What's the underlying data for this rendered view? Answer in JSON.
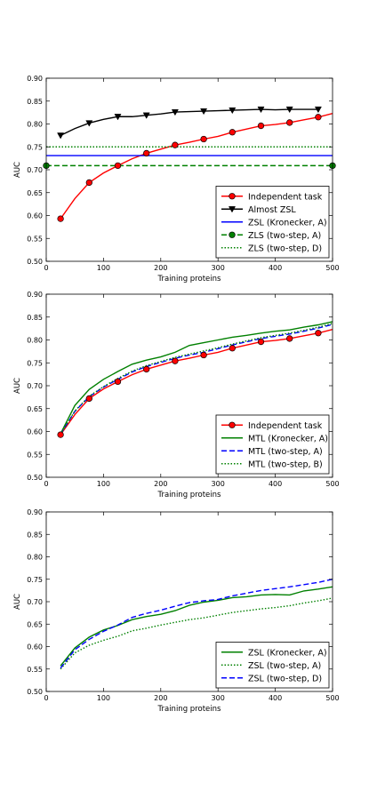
{
  "chart_data": [
    {
      "type": "line",
      "xlabel": "Training proteins",
      "ylabel": "AUC",
      "xlim": [
        0,
        500
      ],
      "ylim": [
        0.5,
        0.9
      ],
      "xticks": [
        0,
        100,
        200,
        300,
        400,
        500
      ],
      "yticks": [
        0.5,
        0.55,
        0.6,
        0.65,
        0.7,
        0.75,
        0.8,
        0.85,
        0.9
      ],
      "grid": false,
      "legend_position": "lower-right",
      "series": [
        {
          "name": "Independent task",
          "color": "#ff0000",
          "line_style": "solid",
          "marker": "circle",
          "marker_color": "#ff0000",
          "x": [
            25,
            50,
            75,
            100,
            125,
            150,
            175,
            200,
            225,
            250,
            275,
            300,
            325,
            350,
            375,
            400,
            425,
            450,
            475,
            500
          ],
          "y": [
            0.593,
            0.637,
            0.672,
            0.693,
            0.709,
            0.724,
            0.736,
            0.745,
            0.754,
            0.76,
            0.767,
            0.773,
            0.782,
            0.789,
            0.796,
            0.799,
            0.803,
            0.809,
            0.815,
            0.823
          ],
          "marker_x": [
            25,
            75,
            125,
            175,
            225,
            275,
            325,
            375,
            425,
            475
          ]
        },
        {
          "name": "Almost ZSL",
          "color": "#000000",
          "line_style": "solid",
          "marker": "triangle-down",
          "marker_color": "#000000",
          "x": [
            25,
            50,
            75,
            100,
            125,
            150,
            175,
            200,
            225,
            250,
            275,
            300,
            325,
            350,
            375,
            400,
            425,
            450,
            475
          ],
          "y": [
            0.775,
            0.79,
            0.802,
            0.81,
            0.816,
            0.816,
            0.819,
            0.822,
            0.826,
            0.827,
            0.828,
            0.829,
            0.83,
            0.831,
            0.832,
            0.831,
            0.832,
            0.832,
            0.832
          ],
          "marker_x": [
            25,
            75,
            125,
            175,
            225,
            275,
            325,
            375,
            425,
            475
          ]
        },
        {
          "name": "ZSL (Kronecker, A)",
          "color": "#0000ff",
          "line_style": "solid",
          "marker": "none",
          "x": [
            0,
            500
          ],
          "y": [
            0.731,
            0.731
          ]
        },
        {
          "name": "ZLS (two-step, A)",
          "color": "#008000",
          "line_style": "dashed",
          "marker": "circle",
          "marker_color": "#008000",
          "x": [
            0,
            500
          ],
          "y": [
            0.709,
            0.709
          ],
          "marker_x": [
            0,
            500
          ]
        },
        {
          "name": "ZLS (two-step, D)",
          "color": "#008000",
          "line_style": "dotted",
          "marker": "none",
          "x": [
            0,
            500
          ],
          "y": [
            0.75,
            0.75
          ]
        }
      ]
    },
    {
      "type": "line",
      "xlabel": "Training proteins",
      "ylabel": "AUC",
      "xlim": [
        0,
        500
      ],
      "ylim": [
        0.5,
        0.9
      ],
      "xticks": [
        0,
        100,
        200,
        300,
        400,
        500
      ],
      "yticks": [
        0.5,
        0.55,
        0.6,
        0.65,
        0.7,
        0.75,
        0.8,
        0.85,
        0.9
      ],
      "grid": false,
      "legend_position": "lower-right",
      "series": [
        {
          "name": "Independent task",
          "color": "#ff0000",
          "line_style": "solid",
          "marker": "circle",
          "marker_color": "#ff0000",
          "x": [
            25,
            50,
            75,
            100,
            125,
            150,
            175,
            200,
            225,
            250,
            275,
            300,
            325,
            350,
            375,
            400,
            425,
            450,
            475,
            500
          ],
          "y": [
            0.593,
            0.637,
            0.672,
            0.693,
            0.709,
            0.724,
            0.736,
            0.745,
            0.754,
            0.76,
            0.767,
            0.773,
            0.782,
            0.789,
            0.796,
            0.799,
            0.803,
            0.809,
            0.815,
            0.823
          ],
          "marker_x": [
            25,
            75,
            125,
            175,
            225,
            275,
            325,
            375,
            425,
            475
          ]
        },
        {
          "name": "MTL (Kronecker, A)",
          "color": "#008000",
          "line_style": "solid",
          "marker": "none",
          "x": [
            25,
            50,
            75,
            100,
            125,
            150,
            175,
            200,
            225,
            250,
            275,
            300,
            325,
            350,
            375,
            400,
            425,
            450,
            475,
            500
          ],
          "y": [
            0.595,
            0.657,
            0.692,
            0.714,
            0.731,
            0.747,
            0.756,
            0.763,
            0.773,
            0.788,
            0.794,
            0.8,
            0.806,
            0.81,
            0.815,
            0.819,
            0.822,
            0.828,
            0.833,
            0.84
          ]
        },
        {
          "name": "MTL (two-step, A)",
          "color": "#0000ff",
          "line_style": "dashed",
          "marker": "none",
          "x": [
            25,
            50,
            75,
            100,
            125,
            150,
            175,
            200,
            225,
            250,
            275,
            300,
            325,
            350,
            375,
            400,
            425,
            450,
            475,
            500
          ],
          "y": [
            0.594,
            0.644,
            0.676,
            0.697,
            0.714,
            0.73,
            0.742,
            0.751,
            0.76,
            0.767,
            0.773,
            0.781,
            0.789,
            0.796,
            0.803,
            0.808,
            0.813,
            0.819,
            0.826,
            0.834
          ]
        },
        {
          "name": "MTL (two-step, B)",
          "color": "#008000",
          "line_style": "dotted",
          "marker": "none",
          "x": [
            25,
            50,
            75,
            100,
            125,
            150,
            175,
            200,
            225,
            250,
            275,
            300,
            325,
            350,
            375,
            400,
            425,
            450,
            475,
            500
          ],
          "y": [
            0.594,
            0.645,
            0.677,
            0.698,
            0.716,
            0.732,
            0.744,
            0.753,
            0.762,
            0.769,
            0.776,
            0.783,
            0.791,
            0.798,
            0.805,
            0.81,
            0.815,
            0.821,
            0.828,
            0.836
          ]
        }
      ]
    },
    {
      "type": "line",
      "xlabel": "Training proteins",
      "ylabel": "AUC",
      "xlim": [
        0,
        500
      ],
      "ylim": [
        0.5,
        0.9
      ],
      "xticks": [
        0,
        100,
        200,
        300,
        400,
        500
      ],
      "yticks": [
        0.5,
        0.55,
        0.6,
        0.65,
        0.7,
        0.75,
        0.8,
        0.85,
        0.9
      ],
      "grid": false,
      "legend_position": "lower-right",
      "series": [
        {
          "name": "ZSL (Kronecker, A)",
          "color": "#008000",
          "line_style": "solid",
          "marker": "none",
          "x": [
            25,
            50,
            75,
            100,
            125,
            150,
            175,
            200,
            225,
            250,
            275,
            300,
            325,
            350,
            375,
            400,
            425,
            450,
            475,
            500
          ],
          "y": [
            0.557,
            0.597,
            0.621,
            0.637,
            0.647,
            0.66,
            0.667,
            0.672,
            0.68,
            0.692,
            0.699,
            0.703,
            0.709,
            0.711,
            0.715,
            0.716,
            0.715,
            0.724,
            0.728,
            0.733
          ]
        },
        {
          "name": "ZSL (two-step, A)",
          "color": "#008000",
          "line_style": "dotted",
          "marker": "none",
          "x": [
            25,
            50,
            75,
            100,
            125,
            150,
            175,
            200,
            225,
            250,
            275,
            300,
            325,
            350,
            375,
            400,
            425,
            450,
            475,
            500
          ],
          "y": [
            0.55,
            0.586,
            0.603,
            0.614,
            0.623,
            0.635,
            0.641,
            0.648,
            0.654,
            0.66,
            0.664,
            0.67,
            0.676,
            0.68,
            0.684,
            0.687,
            0.691,
            0.697,
            0.702,
            0.708
          ]
        },
        {
          "name": "ZSL (two-step, D)",
          "color": "#0000ff",
          "line_style": "dashed",
          "marker": "none",
          "x": [
            25,
            50,
            75,
            100,
            125,
            150,
            175,
            200,
            225,
            250,
            275,
            300,
            325,
            350,
            375,
            400,
            425,
            450,
            475,
            500
          ],
          "y": [
            0.552,
            0.593,
            0.616,
            0.634,
            0.648,
            0.665,
            0.674,
            0.681,
            0.69,
            0.698,
            0.702,
            0.705,
            0.713,
            0.719,
            0.725,
            0.729,
            0.733,
            0.738,
            0.743,
            0.75
          ]
        }
      ]
    }
  ]
}
